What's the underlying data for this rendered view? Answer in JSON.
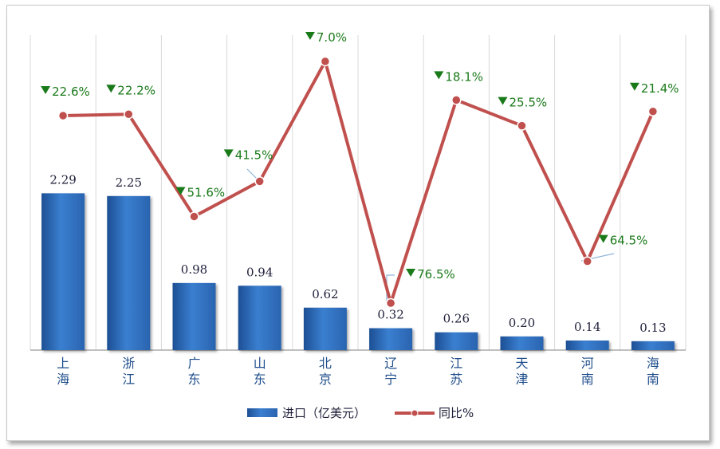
{
  "chart_data": {
    "type": "bar",
    "title": "",
    "categories": [
      [
        "上",
        "海"
      ],
      [
        "浙",
        "江"
      ],
      [
        "广",
        "东"
      ],
      [
        "山",
        "东"
      ],
      [
        "北",
        "京"
      ],
      [
        "辽",
        "宁"
      ],
      [
        "江",
        "苏"
      ],
      [
        "天",
        "津"
      ],
      [
        "河",
        "南"
      ],
      [
        "海",
        "南"
      ]
    ],
    "series": [
      {
        "name": "进口（亿美元）",
        "type": "bar",
        "color": "#2e6fc2",
        "values": [
          2.29,
          2.25,
          0.98,
          0.94,
          0.62,
          0.32,
          0.26,
          0.2,
          0.14,
          0.13
        ],
        "labels": [
          "2.29",
          "2.25",
          "0.98",
          "0.94",
          "0.62",
          "0.32",
          "0.26",
          "0.20",
          "0.14",
          "0.13"
        ]
      },
      {
        "name": "同比%",
        "type": "line",
        "color": "#c0504d",
        "values": [
          -22.6,
          -22.2,
          -51.6,
          -41.5,
          -7.0,
          -76.5,
          -18.1,
          -25.5,
          -64.5,
          -21.4
        ],
        "labels": [
          "22.6%",
          "22.2%",
          "51.6%",
          "41.5%",
          "7.0%",
          "76.5%",
          "18.1%",
          "25.5%",
          "64.5%",
          "21.4%"
        ],
        "marker": "▼"
      }
    ],
    "bar_ylim": [
      0,
      4.6
    ],
    "line_ylim": [
      -100,
      0
    ],
    "grid": "vertical",
    "legend": "bottom-center"
  },
  "legend": {
    "bar_label": "进口（亿美元）",
    "line_label": "同比%"
  }
}
